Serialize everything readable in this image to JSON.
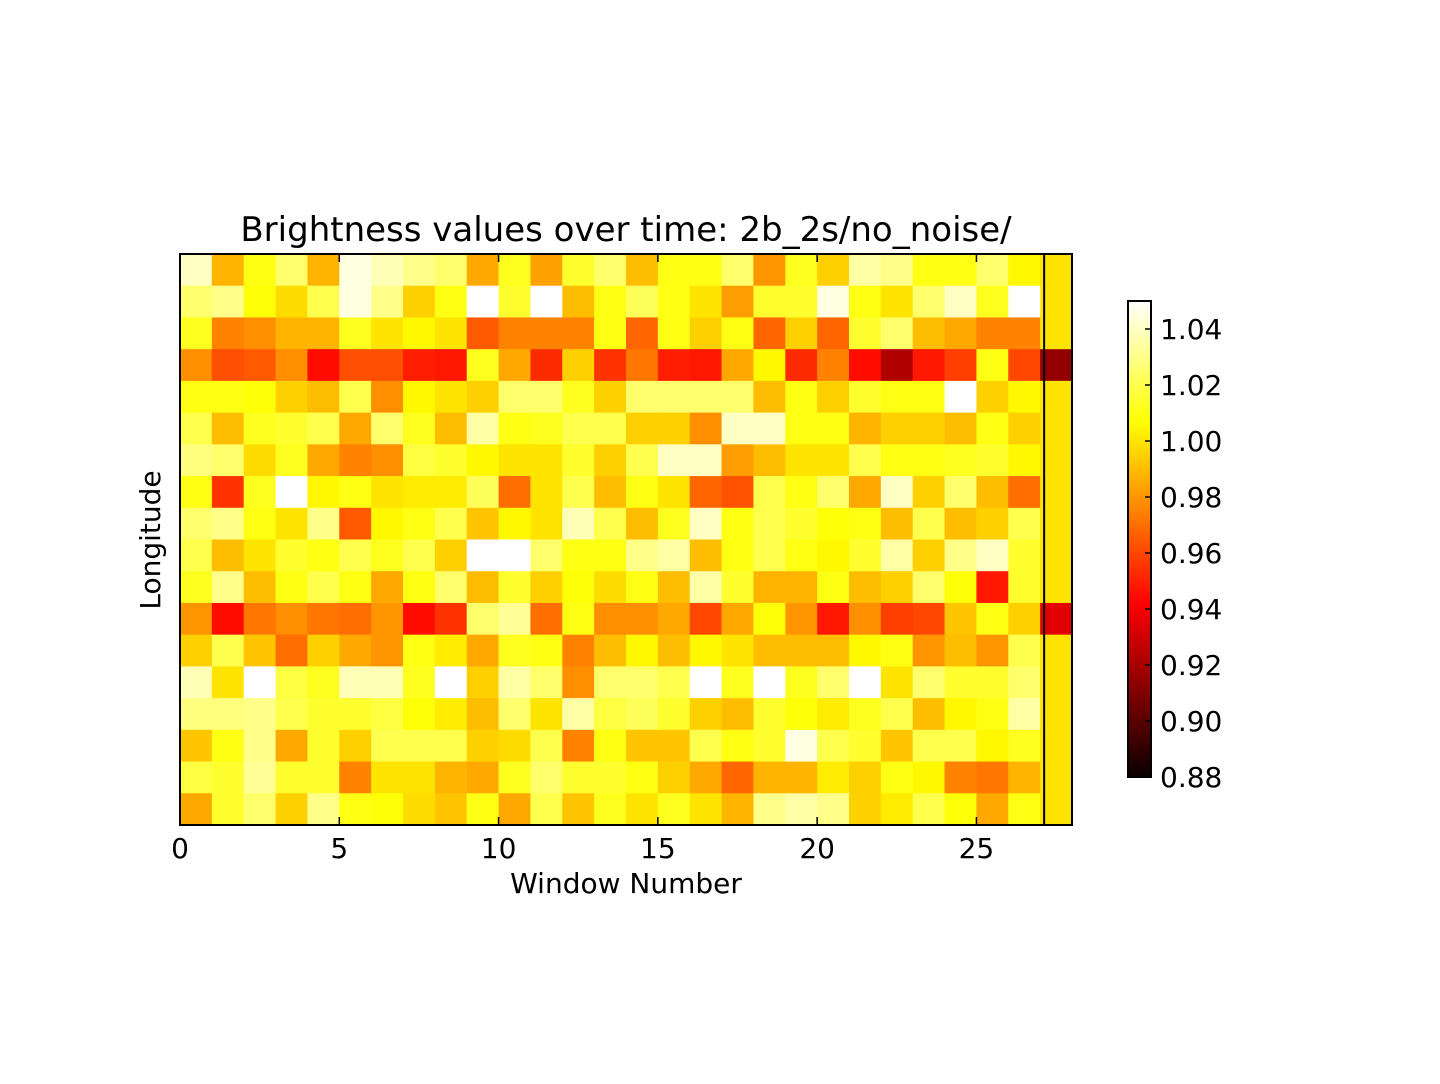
{
  "chart_data": {
    "type": "heatmap",
    "title": "Brightness values over time: 2b_2s/no_noise/",
    "xlabel": "Window Number",
    "ylabel": "Longitude",
    "xlim": [
      0,
      28
    ],
    "xticks": [
      0,
      5,
      10,
      15,
      20,
      25
    ],
    "xtick_labels": [
      "0",
      "5",
      "10",
      "15",
      "20",
      "25"
    ],
    "colormap": "hot",
    "vmin": 0.88,
    "vmax": 1.05,
    "colorbar_ticks": [
      0.88,
      0.9,
      0.92,
      0.94,
      0.96,
      0.98,
      1.0,
      1.02,
      1.04
    ],
    "colorbar_tick_labels": [
      "0.88",
      "0.90",
      "0.92",
      "0.94",
      "0.96",
      "0.98",
      "1.00",
      "1.02",
      "1.04"
    ],
    "grid": false,
    "n_windows": 27,
    "separate_column": "average (window 27)",
    "values": [
      [
        1.04,
        0.988,
        1.01,
        1.025,
        0.988,
        1.045,
        1.038,
        1.03,
        1.025,
        0.985,
        1.012,
        0.983,
        1.015,
        1.025,
        0.99,
        1.01,
        1.01,
        1.025,
        0.98,
        1.012,
        0.995,
        1.035,
        1.03,
        1.01,
        1.01,
        1.025,
        1.005,
        1.0
      ],
      [
        1.025,
        1.03,
        1.008,
        0.998,
        1.02,
        1.045,
        1.03,
        0.995,
        1.01,
        1.05,
        1.015,
        1.05,
        0.99,
        1.01,
        1.022,
        1.01,
        1.0,
        0.982,
        1.015,
        1.015,
        1.045,
        1.01,
        1.0,
        1.025,
        1.04,
        1.012,
        1.05,
        1.0
      ],
      [
        1.012,
        0.975,
        0.978,
        0.988,
        0.988,
        1.012,
        1.0,
        1.005,
        1.0,
        0.965,
        0.975,
        0.975,
        0.975,
        1.01,
        0.968,
        1.01,
        0.995,
        1.01,
        0.968,
        0.995,
        0.968,
        1.015,
        1.025,
        0.99,
        0.985,
        0.975,
        0.975,
        1.0
      ],
      [
        0.978,
        0.962,
        0.965,
        0.978,
        0.945,
        0.962,
        0.962,
        0.95,
        0.948,
        1.012,
        0.985,
        0.953,
        0.995,
        0.955,
        0.972,
        0.95,
        0.948,
        0.985,
        1.005,
        0.953,
        0.975,
        0.945,
        0.922,
        0.948,
        0.958,
        1.01,
        0.96,
        0.915
      ],
      [
        1.01,
        1.01,
        1.008,
        0.995,
        0.99,
        1.02,
        0.978,
        1.005,
        1.0,
        0.995,
        1.025,
        1.025,
        1.012,
        0.995,
        1.025,
        1.025,
        1.025,
        1.025,
        0.99,
        1.01,
        0.995,
        1.015,
        1.01,
        1.01,
        1.05,
        0.995,
        1.005,
        1.0
      ],
      [
        1.02,
        0.99,
        1.012,
        1.015,
        1.02,
        0.985,
        1.025,
        1.012,
        0.99,
        1.035,
        1.01,
        1.012,
        1.02,
        1.02,
        0.995,
        0.995,
        0.978,
        1.04,
        1.04,
        1.01,
        1.01,
        0.988,
        0.995,
        0.995,
        0.99,
        1.01,
        0.995,
        1.0
      ],
      [
        1.028,
        1.025,
        0.998,
        1.012,
        0.985,
        0.975,
        0.978,
        1.018,
        1.015,
        1.005,
        1.0,
        1.0,
        1.015,
        0.995,
        1.02,
        1.04,
        1.04,
        0.982,
        0.99,
        1.0,
        1.0,
        1.02,
        1.01,
        1.01,
        1.012,
        1.015,
        1.005,
        1.0
      ],
      [
        1.01,
        0.955,
        1.012,
        1.05,
        1.005,
        1.01,
        1.0,
        1.002,
        1.002,
        1.022,
        0.97,
        1.0,
        1.02,
        0.99,
        1.01,
        1.0,
        0.968,
        0.963,
        1.02,
        1.01,
        1.025,
        0.985,
        1.04,
        0.995,
        1.025,
        0.99,
        0.97,
        1.0
      ],
      [
        1.025,
        1.03,
        1.01,
        1.0,
        1.03,
        0.965,
        1.005,
        1.01,
        1.02,
        0.992,
        1.005,
        1.0,
        1.038,
        1.02,
        0.99,
        1.012,
        1.04,
        1.01,
        1.02,
        1.015,
        1.008,
        1.01,
        0.99,
        1.02,
        0.99,
        0.995,
        1.02,
        1.0
      ],
      [
        1.02,
        0.99,
        1.0,
        1.015,
        1.01,
        1.02,
        1.012,
        1.02,
        0.995,
        1.05,
        1.05,
        1.025,
        1.01,
        1.01,
        1.03,
        1.035,
        0.99,
        1.01,
        1.02,
        1.01,
        1.005,
        1.015,
        1.035,
        0.995,
        1.03,
        1.04,
        1.015,
        1.0
      ],
      [
        1.012,
        1.03,
        0.99,
        1.01,
        1.02,
        1.01,
        0.985,
        1.01,
        1.025,
        0.99,
        1.015,
        0.995,
        1.008,
        0.998,
        1.01,
        0.99,
        1.035,
        1.015,
        0.988,
        0.988,
        1.01,
        0.99,
        0.995,
        1.025,
        1.008,
        0.948,
        1.015,
        1.0
      ],
      [
        0.98,
        0.945,
        0.972,
        0.978,
        0.972,
        0.97,
        0.98,
        0.945,
        0.955,
        1.025,
        1.032,
        0.97,
        1.01,
        0.978,
        0.978,
        0.985,
        0.96,
        0.985,
        1.008,
        0.98,
        0.948,
        0.978,
        0.958,
        0.96,
        0.992,
        1.01,
        0.995,
        0.935
      ],
      [
        0.995,
        1.02,
        0.992,
        0.97,
        0.995,
        0.985,
        0.98,
        1.01,
        1.002,
        0.985,
        1.012,
        1.01,
        0.975,
        0.99,
        1.005,
        0.99,
        1.005,
        1.0,
        0.99,
        0.99,
        0.99,
        1.005,
        1.01,
        0.98,
        0.99,
        0.98,
        1.02,
        1.0
      ],
      [
        1.038,
        1.0,
        1.05,
        1.018,
        1.012,
        1.038,
        1.038,
        1.012,
        1.05,
        0.995,
        1.035,
        1.025,
        0.978,
        1.025,
        1.025,
        1.02,
        1.05,
        1.012,
        1.05,
        1.012,
        1.025,
        1.05,
        1.0,
        1.025,
        1.015,
        1.015,
        1.025,
        1.0
      ],
      [
        1.028,
        1.028,
        1.03,
        1.02,
        1.015,
        1.015,
        1.018,
        1.008,
        1.002,
        0.99,
        1.025,
        1.0,
        1.035,
        1.018,
        1.022,
        1.015,
        0.995,
        0.99,
        1.015,
        1.008,
        1.002,
        1.012,
        1.02,
        0.99,
        1.005,
        1.01,
        1.035,
        1.0
      ],
      [
        0.992,
        1.01,
        1.03,
        0.985,
        1.015,
        0.995,
        1.02,
        1.02,
        1.02,
        0.995,
        0.998,
        1.02,
        0.975,
        1.01,
        0.992,
        0.992,
        1.02,
        1.01,
        1.015,
        1.045,
        1.02,
        1.015,
        0.992,
        1.02,
        1.02,
        1.005,
        1.012,
        1.0
      ],
      [
        1.018,
        1.015,
        1.032,
        1.015,
        1.015,
        0.975,
        1.0,
        1.0,
        0.988,
        0.985,
        1.012,
        1.025,
        1.015,
        1.015,
        1.01,
        0.995,
        0.985,
        0.968,
        0.988,
        0.988,
        1.002,
        0.995,
        1.01,
        1.005,
        0.975,
        0.972,
        0.988,
        1.0
      ],
      [
        0.985,
        1.015,
        1.025,
        0.995,
        1.03,
        1.01,
        1.008,
        0.998,
        0.992,
        1.01,
        0.985,
        1.02,
        0.992,
        1.012,
        1.0,
        1.012,
        1.0,
        0.988,
        1.03,
        1.035,
        1.03,
        0.995,
        1.002,
        1.02,
        1.008,
        0.985,
        1.01,
        1.0
      ]
    ]
  }
}
